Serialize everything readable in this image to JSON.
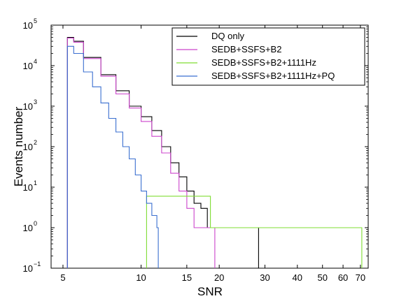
{
  "chart_data": {
    "type": "line",
    "title": "",
    "xlabel": "SNR",
    "ylabel": "Events number",
    "x_scale": "log",
    "y_scale": "log",
    "xlim": [
      4.5,
      75
    ],
    "ylim": [
      0.1,
      100000
    ],
    "x_ticks": [
      5,
      10,
      15,
      20,
      30,
      40,
      50,
      60,
      70
    ],
    "x_tick_labels": [
      "5",
      "10",
      "15",
      "20",
      "30",
      "40",
      "50",
      "60",
      "70"
    ],
    "y_ticks": [
      0.1,
      1,
      10,
      100,
      1000,
      10000,
      100000
    ],
    "y_tick_labels": [
      {
        "base": "10",
        "exp": "−1"
      },
      {
        "base": "10",
        "exp": "0"
      },
      {
        "base": "10",
        "exp": "1"
      },
      {
        "base": "10",
        "exp": "2"
      },
      {
        "base": "10",
        "exp": "3"
      },
      {
        "base": "10",
        "exp": "4"
      },
      {
        "base": "10",
        "exp": "5"
      }
    ],
    "grid": false,
    "legend_position": "top-right",
    "series": [
      {
        "name": "DQ only",
        "color": "#000000",
        "x": [
          5.2,
          5.5,
          6,
          7,
          8,
          9,
          10,
          11,
          12,
          13,
          14,
          15,
          16,
          17,
          18,
          19,
          20,
          21,
          22,
          23,
          28
        ],
        "y": [
          50000,
          40000,
          16000,
          6000,
          2400,
          1000,
          550,
          250,
          100,
          40,
          18,
          8,
          4,
          3,
          1,
          1,
          1,
          1,
          1,
          1,
          1
        ]
      },
      {
        "name": "SEDB+SSFS+B2",
        "color": "#cc44cc",
        "x": [
          5.2,
          5.5,
          6,
          7,
          8,
          9,
          10,
          11,
          12,
          13,
          14,
          15,
          16,
          17,
          18,
          19
        ],
        "y": [
          48000,
          38000,
          15000,
          5500,
          2000,
          900,
          420,
          180,
          70,
          22,
          8,
          3,
          1,
          1,
          1,
          1
        ]
      },
      {
        "name": "SEDB+SSFS+B2+1111Hz",
        "color": "#7fdd33",
        "x": [
          10.5,
          18.5,
          70
        ],
        "y": [
          6,
          1,
          1
        ]
      },
      {
        "name": "SEDB+SSFS+B2+1111Hz+PQ",
        "color": "#3a6fd0",
        "x": [
          5.2,
          5.5,
          6,
          6.5,
          7,
          7.5,
          8,
          8.5,
          9,
          9.5,
          10,
          10.5,
          11,
          11.5
        ],
        "y": [
          30000,
          20000,
          7000,
          3000,
          1200,
          500,
          230,
          100,
          50,
          20,
          8,
          4,
          2,
          1
        ]
      }
    ]
  }
}
